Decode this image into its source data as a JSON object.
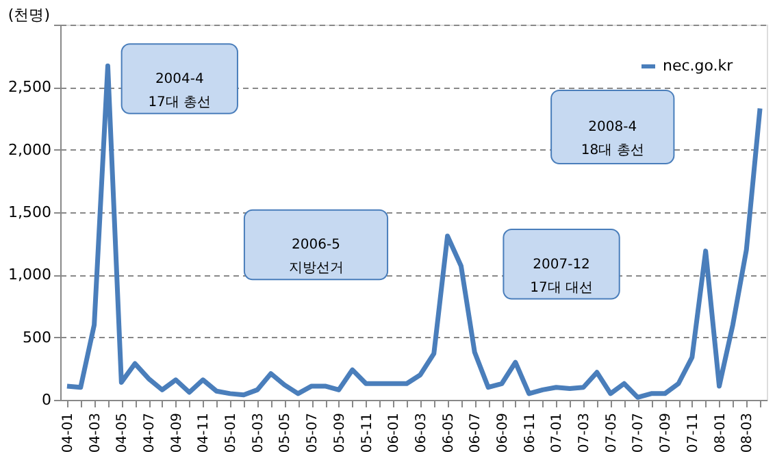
{
  "chart_data": {
    "type": "line",
    "ylabel": "(천명)",
    "categories": [
      "04-01",
      null,
      "04-03",
      null,
      "04-05",
      null,
      "04-07",
      null,
      "04-09",
      null,
      "04-11",
      null,
      "05-01",
      null,
      "05-03",
      null,
      "05-05",
      null,
      "05-07",
      null,
      "05-09",
      null,
      "05-11",
      null,
      "06-01",
      null,
      "06-03",
      null,
      "06-05",
      null,
      "06-07",
      null,
      "06-09",
      null,
      "06-11",
      null,
      "07-01",
      null,
      "07-03",
      null,
      "07-05",
      null,
      "07-07",
      null,
      "07-09",
      null,
      "07-11",
      null,
      "08-01",
      null,
      "08-03",
      null
    ],
    "series": [
      {
        "name": "nec.go.kr",
        "color": "#4a7ebb",
        "values": [
          110,
          100,
          600,
          2670,
          140,
          290,
          170,
          80,
          160,
          60,
          160,
          70,
          50,
          40,
          80,
          210,
          120,
          50,
          110,
          110,
          80,
          240,
          130,
          130,
          130,
          130,
          200,
          370,
          1310,
          1070,
          380,
          100,
          130,
          300,
          50,
          80,
          100,
          90,
          100,
          220,
          50,
          130,
          20,
          50,
          50,
          130,
          340,
          1190,
          110,
          600,
          1200,
          2330
        ]
      }
    ],
    "ylim": [
      0,
      3000
    ],
    "yticks": [
      0,
      500,
      {
        "value": 1000,
        "label": "1,000"
      },
      {
        "value": 1500,
        "label": "1,500"
      },
      {
        "value": 2000,
        "label": "2,000"
      },
      {
        "value": 2500,
        "label": "2,500"
      },
      {
        "value": 3000,
        "label": null
      }
    ],
    "grid": "y",
    "line_style": "solid",
    "marker": "none",
    "legend": "top right",
    "annotations": [
      "2004-4\n17대 총선",
      "2006-5\n지방선거",
      "2007-12\n17대 대선",
      "2008-4\n18대 총선"
    ]
  }
}
